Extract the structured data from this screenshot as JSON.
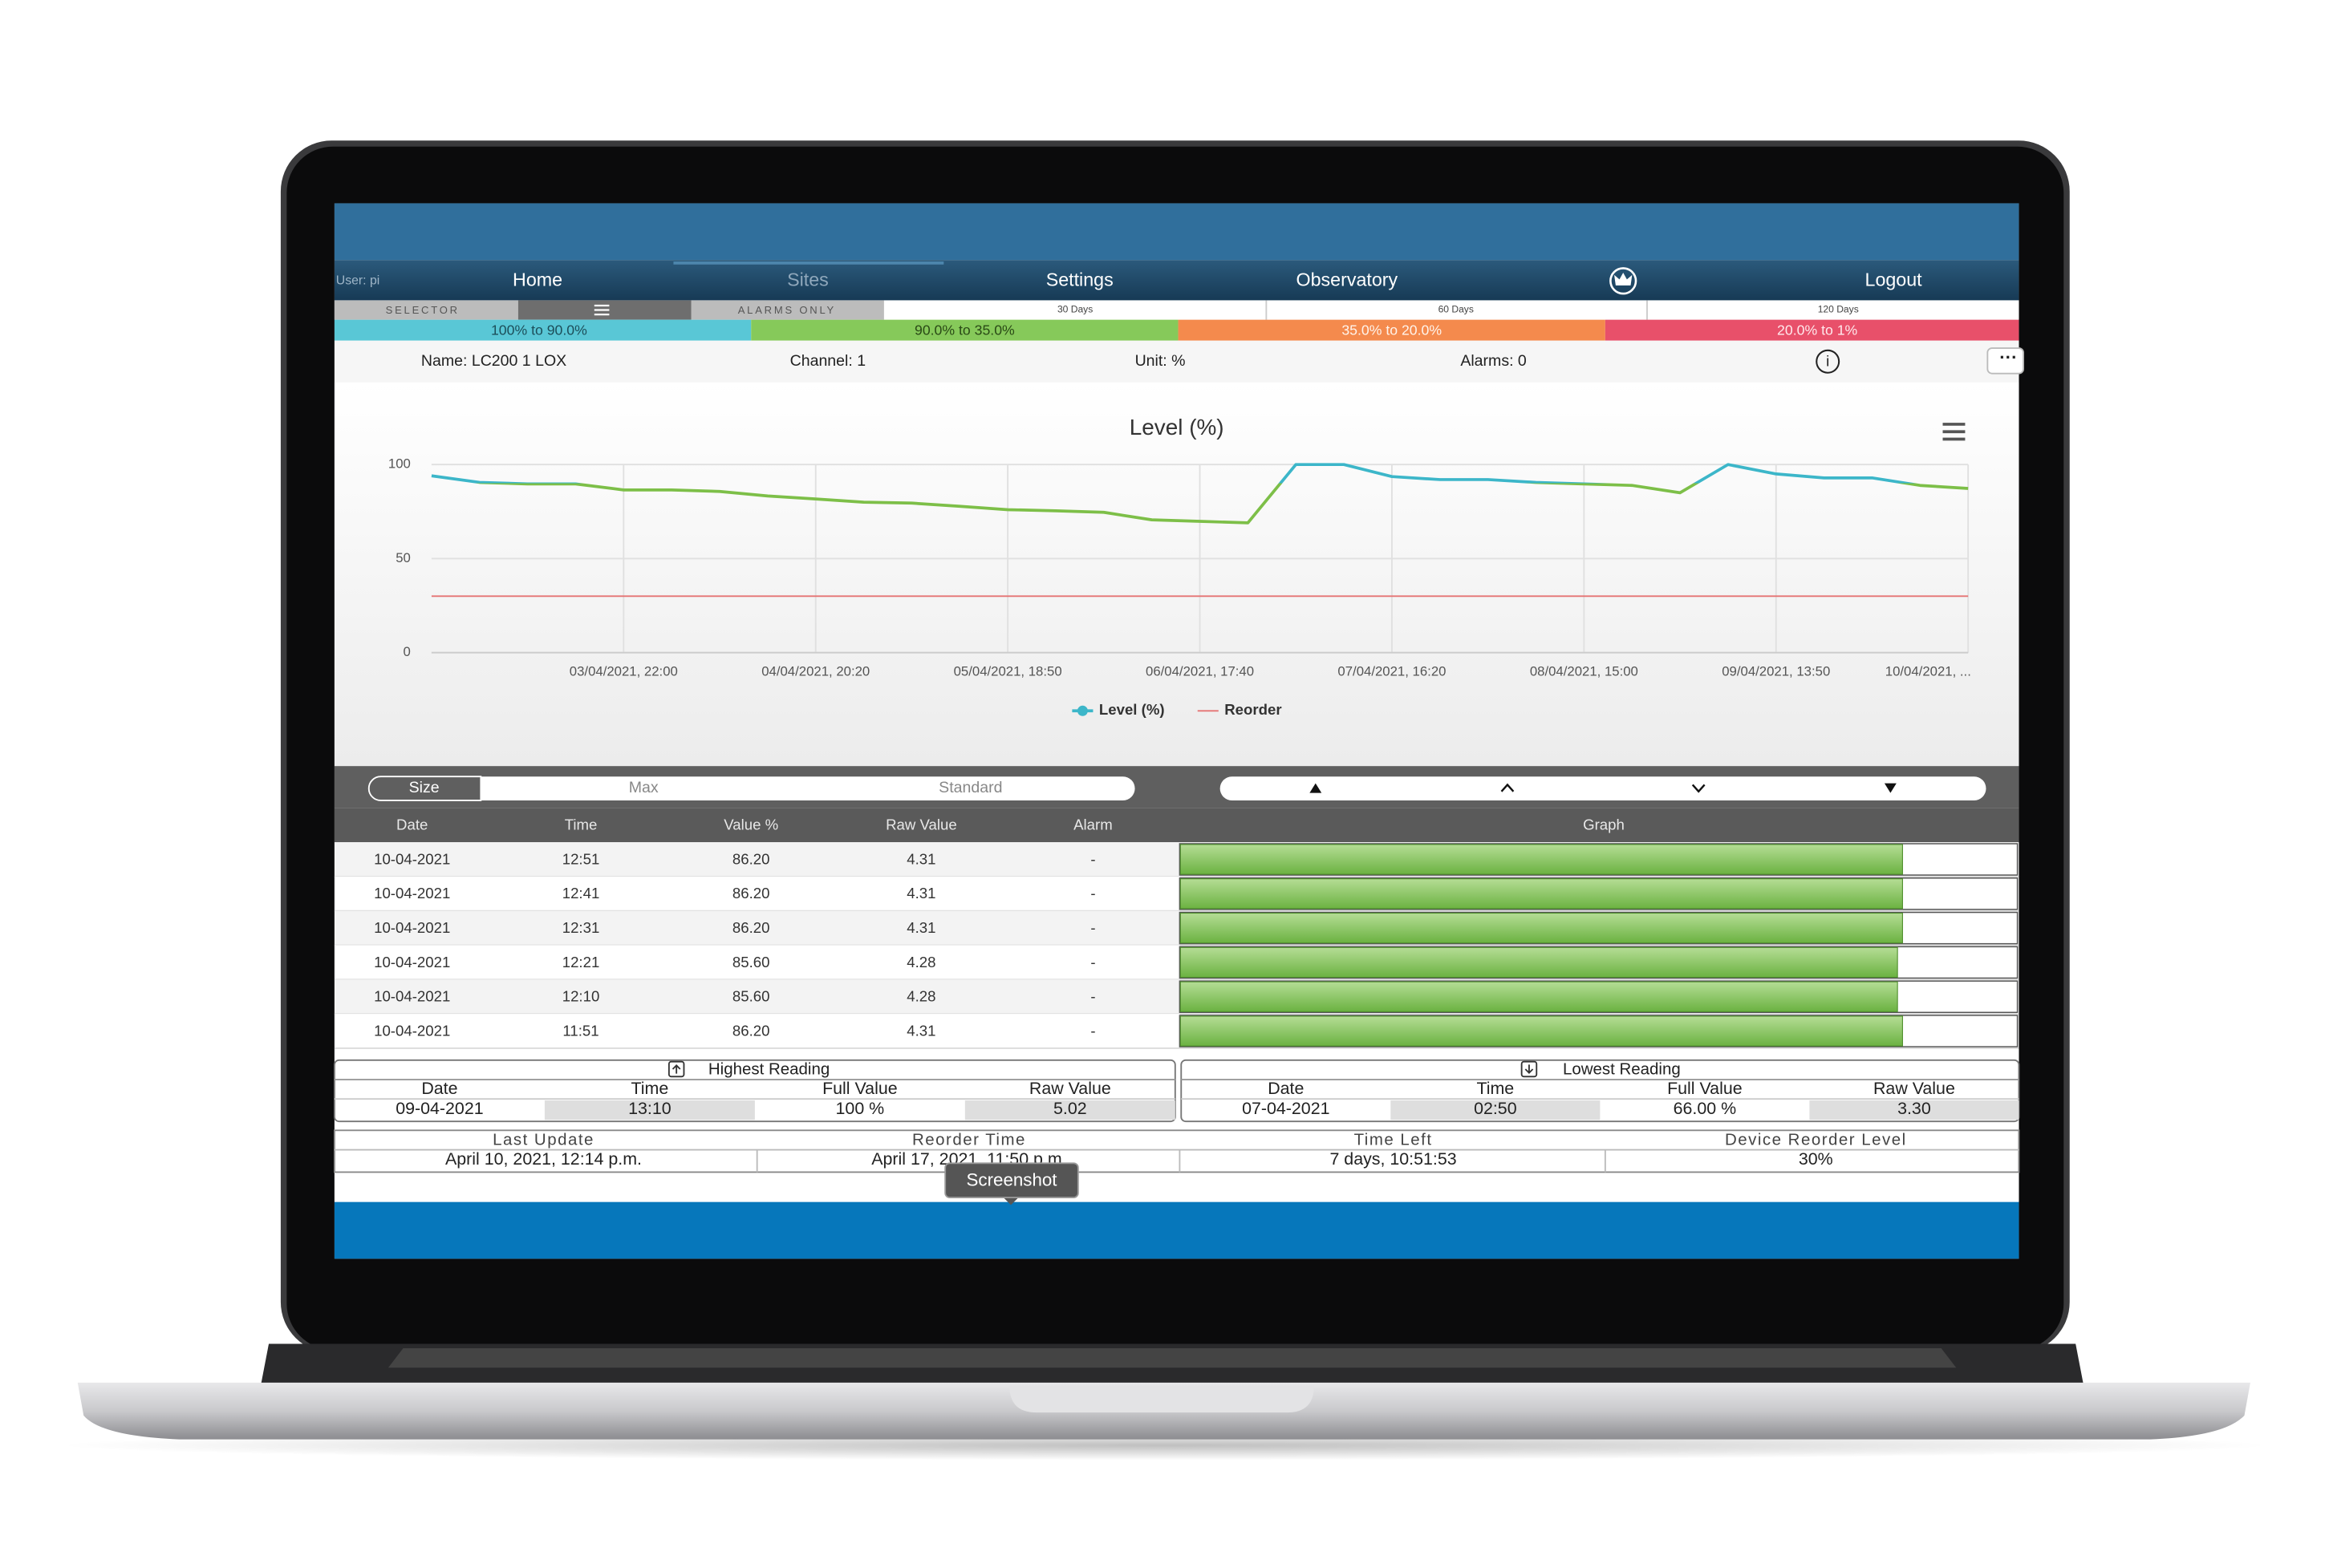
{
  "nav": {
    "user": "User: pi",
    "items": [
      "Home",
      "Sites",
      "Settings",
      "Observatory",
      "Logout"
    ]
  },
  "toolbar": {
    "selector": "SELECTOR",
    "alarms_only": "ALARMS ONLY",
    "ranges": [
      "30 Days",
      "60 Days",
      "120 Days"
    ]
  },
  "bands": [
    "100% to 90.0%",
    "90.0% to 35.0%",
    "35.0% to 20.0%",
    "20.0% to 1%"
  ],
  "info": {
    "name": "Name: LC200 1 LOX",
    "channel": "Channel: 1",
    "unit": "Unit: %",
    "alarms": "Alarms: 0"
  },
  "chart_data": {
    "type": "line",
    "title": "Level (%)",
    "categories": [
      null,
      null,
      null,
      null,
      "03/04/2021, 22:00",
      null,
      null,
      null,
      "04/04/2021, 20:20",
      null,
      null,
      null,
      "05/04/2021, 18:50",
      null,
      null,
      null,
      "06/04/2021, 17:40",
      null,
      null,
      null,
      "07/04/2021, 16:20",
      null,
      null,
      null,
      "08/04/2021, 15:00",
      null,
      null,
      null,
      "09/04/2021, 13:50",
      null,
      null,
      null,
      "10/04/2021, ..."
    ],
    "series": [
      {
        "name": "Level (%)",
        "color": "#3cb6c9",
        "zones": [
          {
            "value": 90,
            "color": "#7dbf48"
          }
        ],
        "values": [
          94,
          90.5,
          89.7,
          89.7,
          86.5,
          86.5,
          85.7,
          83.3,
          81.7,
          80,
          79.5,
          77.8,
          76,
          75.4,
          74.6,
          70.6,
          69.8,
          69,
          100,
          100,
          93.6,
          92,
          92,
          90.5,
          89.7,
          88.9,
          85,
          100,
          95,
          92.9,
          92.9,
          88.9,
          87.3
        ]
      },
      {
        "name": "Reorder",
        "color": "#e57373",
        "values": [
          30,
          30,
          30,
          30,
          30,
          30,
          30,
          30,
          30,
          30,
          30,
          30,
          30,
          30,
          30,
          30,
          30,
          30,
          30,
          30,
          30,
          30,
          30,
          30,
          30,
          30,
          30,
          30,
          30,
          30,
          30,
          30,
          30
        ]
      }
    ],
    "ylim": [
      0,
      100
    ],
    "yticks": [
      0,
      50,
      100
    ],
    "grid": true
  },
  "size_toggle": [
    "Size",
    "Max",
    "Standard"
  ],
  "table": {
    "headers": [
      "Date",
      "Time",
      "Value %",
      "Raw Value",
      "Alarm",
      "Graph"
    ],
    "rows": [
      [
        "10-04-2021",
        "12:51",
        "86.20",
        "4.31",
        "-"
      ],
      [
        "10-04-2021",
        "12:41",
        "86.20",
        "4.31",
        "-"
      ],
      [
        "10-04-2021",
        "12:31",
        "86.20",
        "4.31",
        "-"
      ],
      [
        "10-04-2021",
        "12:21",
        "85.60",
        "4.28",
        "-"
      ],
      [
        "10-04-2021",
        "12:10",
        "85.60",
        "4.28",
        "-"
      ],
      [
        "10-04-2021",
        "11:51",
        "86.20",
        "4.31",
        "-"
      ]
    ]
  },
  "highest": {
    "title": "Highest Reading",
    "headers": [
      "Date",
      "Time",
      "Full Value",
      "Raw Value"
    ],
    "values": [
      "09-04-2021",
      "13:10",
      "100 %",
      "5.02"
    ]
  },
  "lowest": {
    "title": "Lowest Reading",
    "headers": [
      "Date",
      "Time",
      "Full Value",
      "Raw Value"
    ],
    "values": [
      "07-04-2021",
      "02:50",
      "66.00 %",
      "3.30"
    ]
  },
  "footer": {
    "headers": [
      "Last Update",
      "Reorder Time",
      "Time Left",
      "Device Reorder Level"
    ],
    "values": [
      "April 10, 2021, 12:14 p.m.",
      "April 17, 2021, 11:50 p.m.",
      "7 days, 10:51:53",
      "30%"
    ]
  },
  "tooltip": "Screenshot"
}
